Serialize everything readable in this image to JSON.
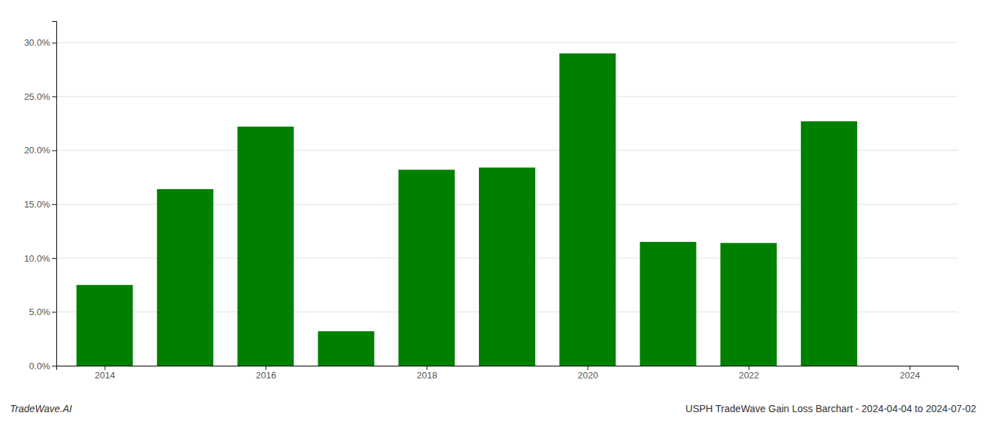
{
  "chart_data": {
    "type": "bar",
    "x": [
      2014,
      2015,
      2016,
      2017,
      2018,
      2019,
      2020,
      2021,
      2022,
      2023
    ],
    "values": [
      0.075,
      0.164,
      0.222,
      0.032,
      0.182,
      0.184,
      0.29,
      0.115,
      0.114,
      0.227
    ],
    "color": "#008000",
    "xlim": [
      2013.4,
      2024.6
    ],
    "xticks": [
      2014,
      2016,
      2018,
      2020,
      2022,
      2024
    ],
    "ylim": [
      0.0,
      0.32
    ],
    "yticks": [
      {
        "value": 0.0,
        "label": "0.0%"
      },
      {
        "value": 0.05,
        "label": "5.0%"
      },
      {
        "value": 0.1,
        "label": "10.0%"
      },
      {
        "value": 0.15,
        "label": "15.0%"
      },
      {
        "value": 0.2,
        "label": "20.0%"
      },
      {
        "value": 0.25,
        "label": "25.0%"
      },
      {
        "value": 0.3,
        "label": "30.0%"
      }
    ],
    "grid": true,
    "annotations": [
      "TradeWave.AI",
      "USPH TradeWave Gain Loss Barchart - 2024-04-04 to 2024-07-02"
    ]
  }
}
